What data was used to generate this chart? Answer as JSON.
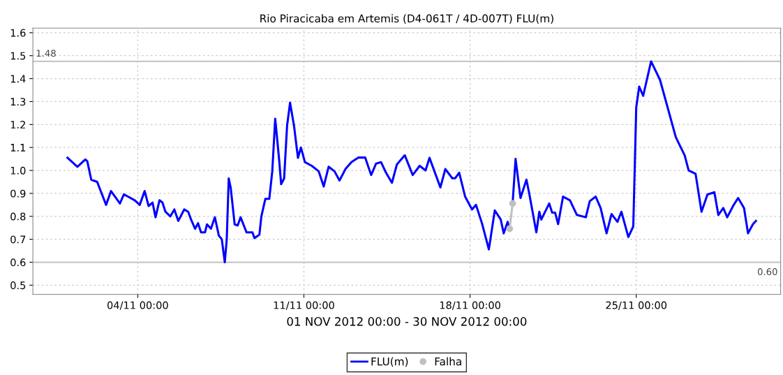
{
  "chart_data": {
    "type": "line",
    "title": "Rio Piracicaba em Artemis (D4-061T / 4D-007T) FLU(m)",
    "xlabel": "01 NOV 2012 00:00 - 30 NOV 2012 00:00",
    "xlim": [
      "2012-10-30T14:00",
      "2012-12-01T02:00"
    ],
    "xticks": [
      {
        "value": "2012-11-04T00:00",
        "label": "04/11 00:00"
      },
      {
        "value": "2012-11-11T00:00",
        "label": "11/11 00:00"
      },
      {
        "value": "2012-11-18T00:00",
        "label": "18/11 00:00"
      },
      {
        "value": "2012-11-25T00:00",
        "label": "25/11 00:00"
      }
    ],
    "ylim": [
      0.46,
      1.62
    ],
    "yticks": [
      0.5,
      0.6,
      0.7,
      0.8,
      0.9,
      {
        "value": 1.0,
        "label": "1.0"
      },
      1.1,
      1.2,
      1.3,
      1.4,
      1.5,
      1.6
    ],
    "grid": true,
    "legend": "bottom",
    "line_style": "solid",
    "ref_lines": [
      {
        "axis": "y",
        "value": 1.475,
        "label": "1.48",
        "color": "#c8c8c8"
      },
      {
        "axis": "y",
        "value": 0.6,
        "label": "0.60",
        "color": "#c8c8c8"
      }
    ],
    "series": [
      {
        "name": "FLU(m)",
        "color": "#0000ff",
        "marker": "none",
        "x": [
          "2012-11-01T01:00",
          "2012-11-01T11:00",
          "2012-11-01T19:00",
          "2012-11-01T21:00",
          "2012-11-02T01:00",
          "2012-11-02T07:00",
          "2012-11-02T16:00",
          "2012-11-02T21:00",
          "2012-11-03T06:00",
          "2012-11-03T10:00",
          "2012-11-03T21:00",
          "2012-11-04T02:00",
          "2012-11-04T07:00",
          "2012-11-04T11:00",
          "2012-11-04T15:00",
          "2012-11-04T18:00",
          "2012-11-04T22:00",
          "2012-11-05T01:00",
          "2012-11-05T04:00",
          "2012-11-05T09:00",
          "2012-11-05T13:00",
          "2012-11-05T17:00",
          "2012-11-05T23:00",
          "2012-11-06T03:00",
          "2012-11-06T06:00",
          "2012-11-06T10:00",
          "2012-11-06T13:00",
          "2012-11-06T16:00",
          "2012-11-06T20:00",
          "2012-11-06T22:00",
          "2012-11-07T02:00",
          "2012-11-07T06:00",
          "2012-11-07T10:00",
          "2012-11-07T13:00",
          "2012-11-07T16:00",
          "2012-11-07T18:00",
          "2012-11-07T20:00",
          "2012-11-07T22:00",
          "2012-11-08T02:00",
          "2012-11-08T05:00",
          "2012-11-08T08:00",
          "2012-11-08T14:00",
          "2012-11-08T20:00",
          "2012-11-08T22:00",
          "2012-11-09T03:00",
          "2012-11-09T05:00",
          "2012-11-09T09:00",
          "2012-11-09T13:00",
          "2012-11-09T16:00",
          "2012-11-09T19:00",
          "2012-11-09T23:00",
          "2012-11-10T01:00",
          "2012-11-10T04:00",
          "2012-11-10T07:00",
          "2012-11-10T10:00",
          "2012-11-10T14:00",
          "2012-11-10T18:00",
          "2012-11-10T21:00",
          "2012-11-11T01:00",
          "2012-11-11T08:00",
          "2012-11-11T15:00",
          "2012-11-11T20:00",
          "2012-11-12T01:00",
          "2012-11-12T07:00",
          "2012-11-12T12:00",
          "2012-11-12T18:00",
          "2012-11-13T00:00",
          "2012-11-13T07:00",
          "2012-11-13T14:00",
          "2012-11-13T20:00",
          "2012-11-14T01:00",
          "2012-11-14T06:00",
          "2012-11-14T11:00",
          "2012-11-14T17:00",
          "2012-11-14T22:00",
          "2012-11-15T06:00",
          "2012-11-15T14:00",
          "2012-11-15T21:00",
          "2012-11-16T03:00",
          "2012-11-16T07:00",
          "2012-11-16T12:00",
          "2012-11-16T18:00",
          "2012-11-16T23:00",
          "2012-11-17T06:00",
          "2012-11-17T09:00",
          "2012-11-17T13:00",
          "2012-11-17T19:00",
          "2012-11-18T02:00",
          "2012-11-18T06:00",
          "2012-11-18T12:00",
          "2012-11-18T19:00",
          "2012-11-19T01:00",
          "2012-11-19T07:00",
          "2012-11-19T10:00",
          "2012-11-19T14:00",
          "2012-11-19T16:00",
          "2012-11-19T17:00",
          "2012-11-19T19:00",
          "2012-11-19T22:00",
          "2012-11-20T03:00",
          "2012-11-20T09:00",
          "2012-11-20T12:00",
          "2012-11-20T19:00",
          "2012-11-20T22:00",
          "2012-11-21T00:00",
          "2012-11-21T08:00",
          "2012-11-21T11:00",
          "2012-11-21T14:00",
          "2012-11-21T17:00",
          "2012-11-21T22:00",
          "2012-11-22T05:00",
          "2012-11-22T12:00",
          "2012-11-22T21:00",
          "2012-11-23T01:00",
          "2012-11-23T07:00",
          "2012-11-23T12:00",
          "2012-11-23T18:00",
          "2012-11-23T23:00",
          "2012-11-24T05:00",
          "2012-11-24T09:00",
          "2012-11-24T16:00",
          "2012-11-24T21:00",
          "2012-11-25T00:00",
          "2012-11-25T03:00",
          "2012-11-25T07:00",
          "2012-11-25T15:00",
          "2012-11-26T00:00",
          "2012-11-26T16:00",
          "2012-11-27T01:00",
          "2012-11-27T05:00",
          "2012-11-27T12:00",
          "2012-11-27T18:00",
          "2012-11-28T00:00",
          "2012-11-28T07:00",
          "2012-11-28T11:00",
          "2012-11-28T16:00",
          "2012-11-28T20:00",
          "2012-11-29T02:00",
          "2012-11-29T07:00",
          "2012-11-29T13:00",
          "2012-11-29T17:00",
          "2012-11-29T22:00",
          "2012-11-30T01:00"
        ],
        "values": [
          1.055,
          1.016,
          1.048,
          1.04,
          0.96,
          0.95,
          0.85,
          0.91,
          0.856,
          0.896,
          0.87,
          0.85,
          0.91,
          0.845,
          0.86,
          0.796,
          0.87,
          0.86,
          0.82,
          0.8,
          0.83,
          0.78,
          0.83,
          0.82,
          0.785,
          0.746,
          0.77,
          0.73,
          0.73,
          0.765,
          0.746,
          0.796,
          0.716,
          0.7,
          0.6,
          0.7,
          0.965,
          0.925,
          0.765,
          0.76,
          0.796,
          0.73,
          0.73,
          0.705,
          0.72,
          0.8,
          0.876,
          0.876,
          0.995,
          1.225,
          1.045,
          0.94,
          0.965,
          1.195,
          1.295,
          1.195,
          1.055,
          1.1,
          1.036,
          1.02,
          0.996,
          0.93,
          1.016,
          0.996,
          0.956,
          1.006,
          1.036,
          1.056,
          1.056,
          0.98,
          1.03,
          1.036,
          0.99,
          0.946,
          1.026,
          1.066,
          0.98,
          1.02,
          1.0,
          1.055,
          0.996,
          0.926,
          1.006,
          0.966,
          0.966,
          0.99,
          0.886,
          0.83,
          0.85,
          0.77,
          0.656,
          0.826,
          0.786,
          0.726,
          0.776,
          0.746,
          null,
          0.856,
          1.05,
          0.88,
          0.96,
          0.895,
          0.73,
          0.82,
          0.786,
          0.856,
          0.816,
          0.816,
          0.766,
          0.886,
          0.87,
          0.806,
          0.796,
          0.866,
          0.886,
          0.836,
          0.726,
          0.81,
          0.776,
          0.82,
          0.71,
          0.756,
          1.275,
          1.365,
          1.325,
          1.475,
          1.395,
          1.145,
          1.065,
          1.0,
          0.985,
          0.82,
          0.895,
          0.905,
          0.806,
          0.836,
          0.796,
          0.846,
          0.88,
          0.836,
          0.726,
          0.766,
          0.78
        ]
      },
      {
        "name": "Falha",
        "color": "#c0c0c0",
        "marker": "circle",
        "x": [
          "2012-11-19T16:00",
          "2012-11-19T19:00"
        ],
        "values": [
          0.746,
          0.856
        ]
      }
    ]
  }
}
